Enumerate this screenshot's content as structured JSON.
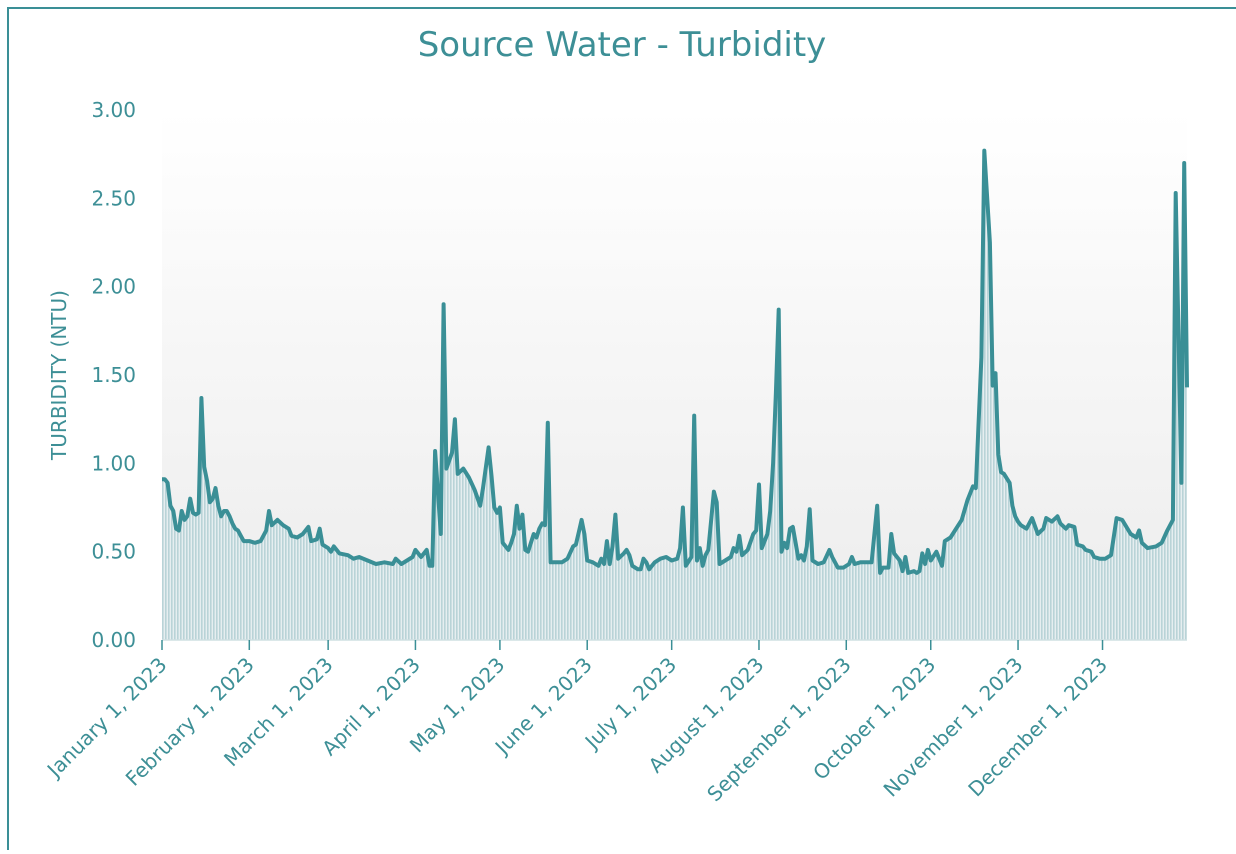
{
  "chart_data": {
    "type": "line",
    "title": "Source Water - Turbidity",
    "ylabel": "TURBIDITY (NTU)",
    "color": "#3a8f96",
    "xlim": [
      "2023-01-01",
      "2023-12-31"
    ],
    "xticks": [
      {
        "value": "2023-01-01",
        "label": "January 1, 2023"
      },
      {
        "value": "2023-02-01",
        "label": "February 1, 2023"
      },
      {
        "value": "2023-03-01",
        "label": "March 1, 2023"
      },
      {
        "value": "2023-04-01",
        "label": "April 1, 2023"
      },
      {
        "value": "2023-05-01",
        "label": "May 1, 2023"
      },
      {
        "value": "2023-06-01",
        "label": "June 1, 2023"
      },
      {
        "value": "2023-07-01",
        "label": "July 1, 2023"
      },
      {
        "value": "2023-08-01",
        "label": "August 1, 2023"
      },
      {
        "value": "2023-09-01",
        "label": "September 1, 2023"
      },
      {
        "value": "2023-10-01",
        "label": "October 1, 2023"
      },
      {
        "value": "2023-11-01",
        "label": "November 1, 2023"
      },
      {
        "value": "2023-12-01",
        "label": "December 1, 2023"
      }
    ],
    "ylim": [
      0,
      3
    ],
    "yticks": [
      {
        "value": 0,
        "label": "0.00"
      },
      {
        "value": 0.5,
        "label": "0.50"
      },
      {
        "value": 1,
        "label": "1.00"
      },
      {
        "value": 1.5,
        "label": "1.50"
      },
      {
        "value": 2,
        "label": "2.00"
      },
      {
        "value": 2.5,
        "label": "2.50"
      },
      {
        "value": 3,
        "label": "3.00"
      }
    ],
    "x": [
      "2023-01-01",
      "2023-01-02",
      "2023-01-03",
      "2023-01-04",
      "2023-01-05",
      "2023-01-06",
      "2023-01-07",
      "2023-01-08",
      "2023-01-09",
      "2023-01-10",
      "2023-01-11",
      "2023-01-12",
      "2023-01-13",
      "2023-01-14",
      "2023-01-15",
      "2023-01-16",
      "2023-01-17",
      "2023-01-18",
      "2023-01-19",
      "2023-01-20",
      "2023-01-21",
      "2023-01-22",
      "2023-01-23",
      "2023-01-24",
      "2023-01-25",
      "2023-01-26",
      "2023-01-27",
      "2023-01-28",
      "2023-01-29",
      "2023-01-30",
      "2023-02-01",
      "2023-02-03",
      "2023-02-05",
      "2023-02-07",
      "2023-02-08",
      "2023-02-09",
      "2023-02-11",
      "2023-02-13",
      "2023-02-15",
      "2023-02-16",
      "2023-02-18",
      "2023-02-20",
      "2023-02-22",
      "2023-02-23",
      "2023-02-25",
      "2023-02-26",
      "2023-02-27",
      "2023-03-01",
      "2023-03-02",
      "2023-03-03",
      "2023-03-05",
      "2023-03-08",
      "2023-03-10",
      "2023-03-12",
      "2023-03-15",
      "2023-03-18",
      "2023-03-21",
      "2023-03-24",
      "2023-03-25",
      "2023-03-27",
      "2023-03-29",
      "2023-03-31",
      "2023-04-01",
      "2023-04-03",
      "2023-04-05",
      "2023-04-06",
      "2023-04-07",
      "2023-04-08",
      "2023-04-10",
      "2023-04-11",
      "2023-04-12",
      "2023-04-14",
      "2023-04-15",
      "2023-04-16",
      "2023-04-18",
      "2023-04-20",
      "2023-04-22",
      "2023-04-24",
      "2023-04-25",
      "2023-04-27",
      "2023-04-28",
      "2023-04-29",
      "2023-04-30",
      "2023-05-01",
      "2023-05-02",
      "2023-05-04",
      "2023-05-05",
      "2023-05-06",
      "2023-05-07",
      "2023-05-08",
      "2023-05-09",
      "2023-05-10",
      "2023-05-11",
      "2023-05-13",
      "2023-05-14",
      "2023-05-15",
      "2023-05-16",
      "2023-05-17",
      "2023-05-18",
      "2023-05-19",
      "2023-05-23",
      "2023-05-25",
      "2023-05-27",
      "2023-05-28",
      "2023-05-29",
      "2023-05-30",
      "2023-05-31",
      "2023-06-01",
      "2023-06-03",
      "2023-06-05",
      "2023-06-06",
      "2023-06-07",
      "2023-06-08",
      "2023-06-09",
      "2023-06-10",
      "2023-06-11",
      "2023-06-12",
      "2023-06-14",
      "2023-06-15",
      "2023-06-16",
      "2023-06-17",
      "2023-06-19",
      "2023-06-20",
      "2023-06-21",
      "2023-06-22",
      "2023-06-23",
      "2023-06-25",
      "2023-06-27",
      "2023-06-29",
      "2023-07-01",
      "2023-07-03",
      "2023-07-04",
      "2023-07-05",
      "2023-07-06",
      "2023-07-08",
      "2023-07-09",
      "2023-07-10",
      "2023-07-11",
      "2023-07-12",
      "2023-07-13",
      "2023-07-14",
      "2023-07-16",
      "2023-07-17",
      "2023-07-18",
      "2023-07-20",
      "2023-07-22",
      "2023-07-23",
      "2023-07-24",
      "2023-07-25",
      "2023-07-26",
      "2023-07-28",
      "2023-07-30",
      "2023-07-31",
      "2023-08-01",
      "2023-08-02",
      "2023-08-04",
      "2023-08-05",
      "2023-08-06",
      "2023-08-07",
      "2023-08-08",
      "2023-08-09",
      "2023-08-10",
      "2023-08-11",
      "2023-08-12",
      "2023-08-13",
      "2023-08-15",
      "2023-08-16",
      "2023-08-17",
      "2023-08-18",
      "2023-08-19",
      "2023-08-20",
      "2023-08-22",
      "2023-08-24",
      "2023-08-26",
      "2023-08-27",
      "2023-08-29",
      "2023-08-31",
      "2023-09-02",
      "2023-09-03",
      "2023-09-04",
      "2023-09-06",
      "2023-09-08",
      "2023-09-10",
      "2023-09-12",
      "2023-09-13",
      "2023-09-14",
      "2023-09-16",
      "2023-09-17",
      "2023-09-18",
      "2023-09-20",
      "2023-09-21",
      "2023-09-22",
      "2023-09-23",
      "2023-09-25",
      "2023-09-26",
      "2023-09-27",
      "2023-09-28",
      "2023-09-29",
      "2023-09-30",
      "2023-10-01",
      "2023-10-03",
      "2023-10-05",
      "2023-10-06",
      "2023-10-08",
      "2023-10-10",
      "2023-10-12",
      "2023-10-14",
      "2023-10-16",
      "2023-10-17",
      "2023-10-19",
      "2023-10-20",
      "2023-10-22",
      "2023-10-23",
      "2023-10-24",
      "2023-10-25",
      "2023-10-26",
      "2023-10-27",
      "2023-10-29",
      "2023-10-30",
      "2023-10-31",
      "2023-11-01",
      "2023-11-02",
      "2023-11-04",
      "2023-11-06",
      "2023-11-08",
      "2023-11-10",
      "2023-11-11",
      "2023-11-13",
      "2023-11-15",
      "2023-11-16",
      "2023-11-18",
      "2023-11-19",
      "2023-11-21",
      "2023-11-22",
      "2023-11-24",
      "2023-11-25",
      "2023-11-27",
      "2023-11-28",
      "2023-11-30",
      "2023-12-02",
      "2023-12-04",
      "2023-12-06",
      "2023-12-08",
      "2023-12-11",
      "2023-12-13",
      "2023-12-14",
      "2023-12-15",
      "2023-12-17",
      "2023-12-20",
      "2023-12-22",
      "2023-12-24",
      "2023-12-26",
      "2023-12-27",
      "2023-12-29",
      "2023-12-30",
      "2023-12-31"
    ],
    "values": [
      0.91,
      0.91,
      0.89,
      0.76,
      0.73,
      0.63,
      0.62,
      0.73,
      0.68,
      0.7,
      0.8,
      0.72,
      0.71,
      0.72,
      1.37,
      0.98,
      0.9,
      0.78,
      0.8,
      0.86,
      0.76,
      0.7,
      0.73,
      0.73,
      0.7,
      0.66,
      0.63,
      0.62,
      0.59,
      0.56,
      0.56,
      0.55,
      0.56,
      0.62,
      0.73,
      0.65,
      0.68,
      0.65,
      0.63,
      0.59,
      0.58,
      0.6,
      0.64,
      0.56,
      0.57,
      0.63,
      0.54,
      0.52,
      0.5,
      0.53,
      0.49,
      0.48,
      0.46,
      0.47,
      0.45,
      0.43,
      0.44,
      0.43,
      0.46,
      0.43,
      0.45,
      0.47,
      0.51,
      0.47,
      0.51,
      0.42,
      0.42,
      1.07,
      0.6,
      1.9,
      0.97,
      1.06,
      1.25,
      0.94,
      0.97,
      0.92,
      0.85,
      0.76,
      0.86,
      1.09,
      0.93,
      0.75,
      0.72,
      0.75,
      0.55,
      0.51,
      0.55,
      0.6,
      0.76,
      0.63,
      0.71,
      0.51,
      0.5,
      0.6,
      0.58,
      0.63,
      0.66,
      0.65,
      1.23,
      0.44,
      0.44,
      0.46,
      0.53,
      0.54,
      0.61,
      0.68,
      0.6,
      0.45,
      0.44,
      0.42,
      0.46,
      0.43,
      0.56,
      0.43,
      0.53,
      0.71,
      0.46,
      0.49,
      0.51,
      0.48,
      0.42,
      0.4,
      0.4,
      0.46,
      0.44,
      0.4,
      0.44,
      0.46,
      0.47,
      0.45,
      0.46,
      0.52,
      0.75,
      0.42,
      0.47,
      1.27,
      0.45,
      0.52,
      0.42,
      0.48,
      0.51,
      0.84,
      0.78,
      0.43,
      0.45,
      0.47,
      0.52,
      0.5,
      0.59,
      0.48,
      0.51,
      0.6,
      0.62,
      0.88,
      0.52,
      0.6,
      0.73,
      1.0,
      1.4,
      1.87,
      0.5,
      0.55,
      0.52,
      0.63,
      0.64,
      0.46,
      0.48,
      0.45,
      0.53,
      0.74,
      0.45,
      0.43,
      0.44,
      0.51,
      0.47,
      0.41,
      0.41,
      0.43,
      0.47,
      0.43,
      0.44,
      0.44,
      0.44,
      0.76,
      0.38,
      0.41,
      0.41,
      0.6,
      0.49,
      0.45,
      0.39,
      0.47,
      0.38,
      0.39,
      0.38,
      0.39,
      0.49,
      0.43,
      0.51,
      0.45,
      0.5,
      0.42,
      0.56,
      0.58,
      0.63,
      0.68,
      0.79,
      0.87,
      0.86,
      1.6,
      2.77,
      2.25,
      1.44,
      1.51,
      1.05,
      0.95,
      0.94,
      0.89,
      0.76,
      0.7,
      0.67,
      0.65,
      0.63,
      0.69,
      0.6,
      0.63,
      0.69,
      0.67,
      0.7,
      0.66,
      0.63,
      0.65,
      0.64,
      0.54,
      0.53,
      0.51,
      0.5,
      0.47,
      0.46,
      0.46,
      0.48,
      0.69,
      0.68,
      0.6,
      0.58,
      0.62,
      0.55,
      0.52,
      0.53,
      0.55,
      0.62,
      0.68,
      2.53,
      0.89,
      2.7,
      1.43
    ]
  }
}
